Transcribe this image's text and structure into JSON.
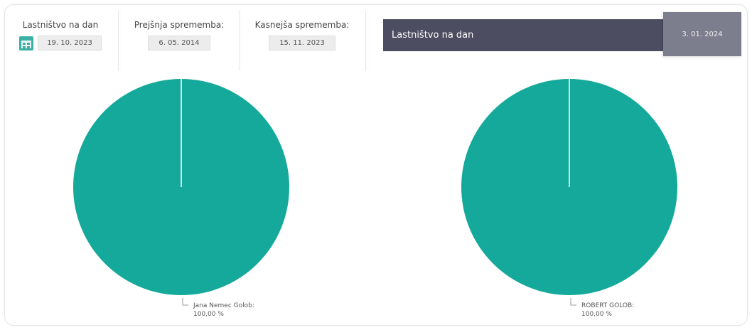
{
  "left_panel": {
    "ownership_date_label": "Lastništvo na dan",
    "ownership_date_value": "19. 10. 2023",
    "previous_change_label": "Prejšnja sprememba:",
    "previous_change_value": "6. 05. 2014",
    "next_change_label": "Kasnejša sprememba:",
    "next_change_value": "15. 11. 2023"
  },
  "right_panel": {
    "header_label": "Lastništvo na dan",
    "header_date": "3. 01. 2024"
  },
  "colors": {
    "pie_fill": "#14a99a",
    "header_bg": "#4c4d61",
    "date_badge_bg": "#7c7d8d"
  },
  "icons": {
    "calendar": "calendar-icon"
  },
  "chart_data": [
    {
      "type": "pie",
      "slices": [
        {
          "label": "Jana Nemec Golob:",
          "value": 100.0,
          "value_label": "100,00 %"
        }
      ]
    },
    {
      "type": "pie",
      "slices": [
        {
          "label": "ROBERT GOLOB:",
          "value": 100.0,
          "value_label": "100,00 %"
        }
      ]
    }
  ]
}
